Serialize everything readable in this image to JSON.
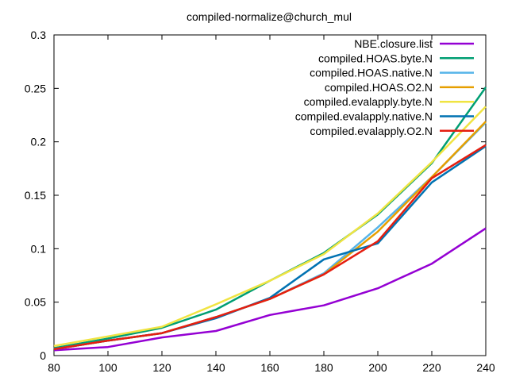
{
  "chart_data": {
    "type": "line",
    "title": "compiled-normalize@church_mul",
    "xlabel": "",
    "ylabel": "",
    "xlim": [
      80,
      240
    ],
    "ylim": [
      0,
      0.3
    ],
    "x_ticks": [
      "80",
      "100",
      "120",
      "140",
      "160",
      "180",
      "200",
      "220",
      "240"
    ],
    "y_ticks": [
      "0",
      "0.05",
      "0.1",
      "0.15",
      "0.2",
      "0.25",
      "0.3"
    ],
    "grid": false,
    "legend_position": "top-right",
    "x": [
      80,
      100,
      120,
      140,
      160,
      180,
      200,
      220,
      240
    ],
    "series": [
      {
        "name": "NBE.closure.list",
        "color": "#9400d3",
        "values": [
          0.005,
          0.008,
          0.017,
          0.023,
          0.038,
          0.047,
          0.063,
          0.086,
          0.119
        ]
      },
      {
        "name": "compiled.HOAS.byte.N",
        "color": "#009e73",
        "values": [
          0.007,
          0.016,
          0.026,
          0.043,
          0.07,
          0.096,
          0.132,
          0.18,
          0.251
        ]
      },
      {
        "name": "compiled.HOAS.native.N",
        "color": "#56b4e9",
        "values": [
          0.006,
          0.014,
          0.021,
          0.036,
          0.053,
          0.077,
          0.12,
          0.167,
          0.218
        ]
      },
      {
        "name": "compiled.HOAS.O2.N",
        "color": "#e69f00",
        "values": [
          0.006,
          0.014,
          0.021,
          0.036,
          0.053,
          0.076,
          0.116,
          0.167,
          0.219
        ]
      },
      {
        "name": "compiled.evalapply.byte.N",
        "color": "#f0e442",
        "values": [
          0.009,
          0.018,
          0.027,
          0.048,
          0.07,
          0.095,
          0.133,
          0.181,
          0.233
        ]
      },
      {
        "name": "compiled.evalapply.native.N",
        "color": "#0072b2",
        "values": [
          0.006,
          0.014,
          0.021,
          0.035,
          0.054,
          0.09,
          0.105,
          0.162,
          0.196
        ]
      },
      {
        "name": "compiled.evalapply.O2.N",
        "color": "#e51e10",
        "values": [
          0.006,
          0.014,
          0.021,
          0.036,
          0.053,
          0.076,
          0.107,
          0.166,
          0.197
        ]
      }
    ]
  }
}
